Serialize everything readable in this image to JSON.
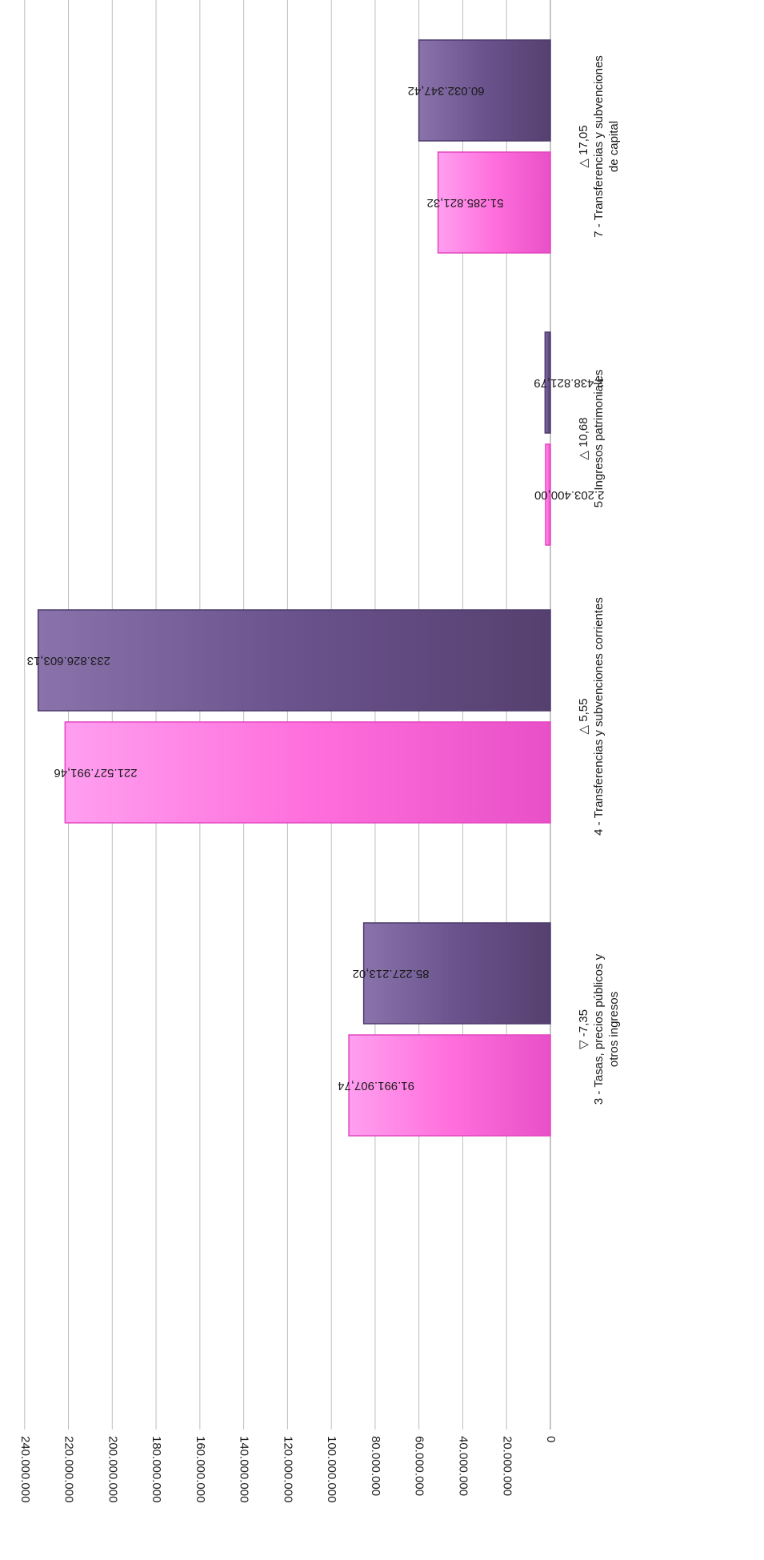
{
  "colors": {
    "series_a": "#ff6fdc",
    "series_a_edge": "#e246c0",
    "series_b": "#6a528c",
    "series_b_edge": "#4d3a6c",
    "grid": "#bdbdbd",
    "axis": "#888888",
    "text": "#1a1a1a"
  },
  "chart_data": {
    "type": "bar",
    "orientation": "rotated-90",
    "title": "",
    "xlabel": "",
    "ylabel": "",
    "ylim": [
      0,
      240000000
    ],
    "grid": true,
    "tick_values": [
      0,
      20000000,
      40000000,
      60000000,
      80000000,
      100000000,
      120000000,
      140000000,
      160000000,
      180000000,
      200000000,
      220000000,
      240000000
    ],
    "tick_labels": [
      "0",
      "20.000.000",
      "40.000.000",
      "60.000.000",
      "80.000.000",
      "100.000.000",
      "120.000.000",
      "140.000.000",
      "160.000.000",
      "180.000.000",
      "200.000.000",
      "220.000.000",
      "240.000.000"
    ],
    "categories": [
      {
        "label_lines": [
          "3 - Tasas, precios públicos y",
          "otros ingresos"
        ],
        "change": "▽  -7,35"
      },
      {
        "label_lines": [
          "4 - Transferencias y subvenciones corrientes"
        ],
        "change": "△  5,55"
      },
      {
        "label_lines": [
          "5 - Ingresos patrimoniales"
        ],
        "change": "△  10,68"
      },
      {
        "label_lines": [
          "7 - Transferencias y subvenciones",
          "de capital"
        ],
        "change": "△  17,05"
      }
    ],
    "series": [
      {
        "values": [
          91991907.74,
          221527991.46,
          2203400.0,
          51285821.32
        ],
        "labels": [
          "91.991.907,74",
          "221.527.991,46",
          "2.203.400,00",
          "51.285.821,32"
        ]
      },
      {
        "values": [
          85227213.02,
          233826603.13,
          2438821.79,
          60032347.42
        ],
        "labels": [
          "85.227.213,02",
          "233.826.603,13",
          "2.438.821,79",
          "60.032.347,42"
        ]
      }
    ]
  }
}
